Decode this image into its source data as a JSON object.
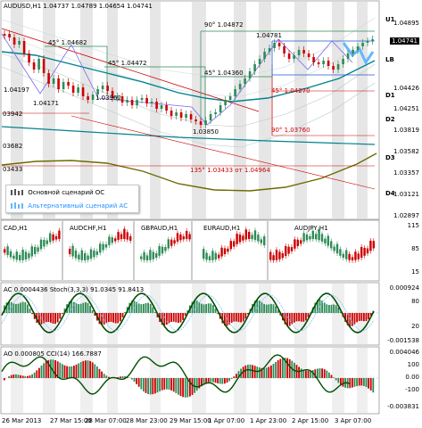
{
  "main": {
    "title": "AUDUSD,H1  1.04737 1.04789 1.04654 1.04741",
    "current_price": "1.04741",
    "price_labels": [
      "1.04895",
      "1.04741",
      "1.04426",
      "1.04251",
      "1.03819",
      "1.03582",
      "1.03357",
      "1.03121",
      "1.02897"
    ],
    "level_labels": [
      "U1",
      "LB",
      "D1",
      "D2",
      "D3",
      "D4"
    ],
    "annotations": [
      "90° 1.04872",
      "1.04781",
      "45° 1.04682",
      "45° 1.04472",
      "45° 1.04360",
      "1.04197",
      "1.04171",
      "1.03962",
      "45° 1.04270",
      "03942",
      "1.03850",
      "90° 1.03760",
      "03682",
      "03433",
      "135° 1.03433 от 1.04964"
    ],
    "legend": {
      "main": "Основной сценарий ОС",
      "alt": "Альтернативный сценарий АС"
    }
  },
  "cross_panel": {
    "labels": [
      "CAD,H1",
      "AUDCHF,H1",
      "GBPAUD,H1",
      "EURAUD,H1",
      "AUDJPY,H1"
    ],
    "scale": [
      "115",
      "85",
      "15"
    ]
  },
  "ac_panel": {
    "title": "AC 0.0004436  Stoch(3,3,3) 91.0345 91.8413",
    "scale": [
      "0.000924",
      "80",
      "20",
      "-0.001538"
    ]
  },
  "ao_panel": {
    "title": "AO 0.000805  CCI(14) 166.7887",
    "scale": [
      "0.004046",
      "100",
      "0.00",
      "-100",
      "-0.003831"
    ]
  },
  "dates": [
    "26 Mar 2013",
    "27 Mar 15:00",
    "28 Mar 07:00",
    "28 Mar 23:00",
    "29 Mar 15:00",
    "1 Apr 07:00",
    "1 Apr 23:00",
    "2 Apr 15:00",
    "3 Apr 07:00"
  ],
  "colors": {
    "bull": "#2e8b57",
    "bear": "#cc0000",
    "ma": "#00838f",
    "envelope": "#6b6b00",
    "scenario_alt": "#63b8ff"
  }
}
